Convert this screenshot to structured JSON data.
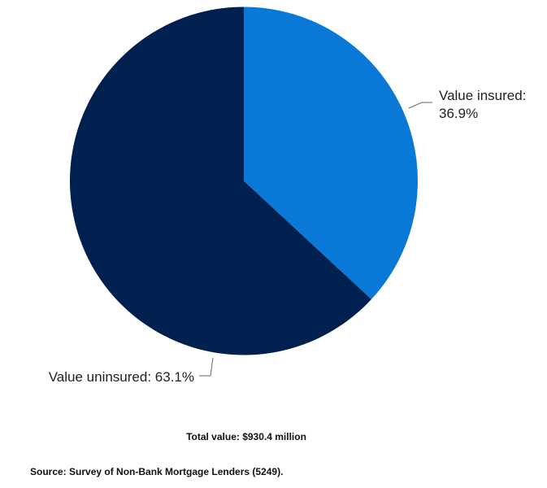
{
  "chart_data": {
    "type": "pie",
    "categories": [
      "Value insured:",
      "Value uninsured:"
    ],
    "values": [
      36.9,
      63.1
    ],
    "value_labels": [
      "36.9%",
      "63.1%"
    ],
    "colors": [
      "#0a78d7",
      "#00204f"
    ],
    "annotations": [
      "Total value: $930.4 million",
      "Source: Survey of Non-Bank Mortgage Lenders (5249)."
    ]
  }
}
